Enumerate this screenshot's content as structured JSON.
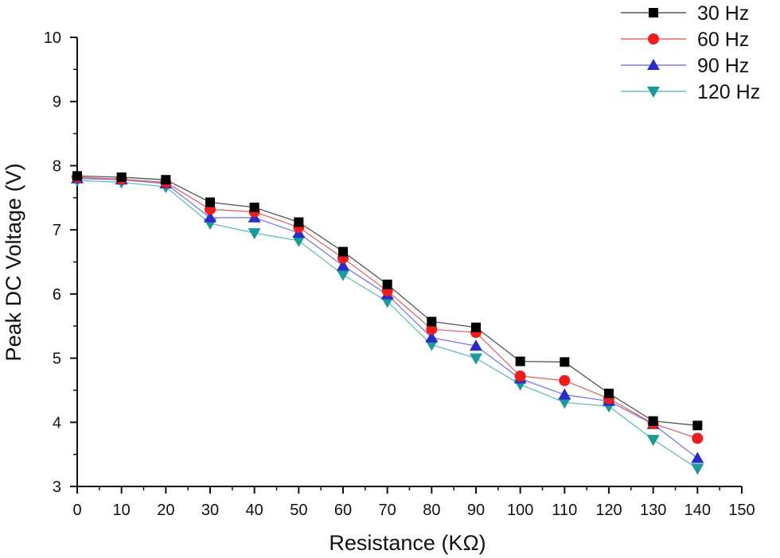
{
  "chart_data": {
    "type": "line",
    "title": "",
    "xlabel": "Resistance (KΩ)",
    "ylabel": "Peak DC Voltage (V)",
    "xlim": [
      0,
      150
    ],
    "ylim": [
      3,
      10
    ],
    "xticks": [
      0,
      10,
      20,
      30,
      40,
      50,
      60,
      70,
      80,
      90,
      100,
      110,
      120,
      130,
      140,
      150
    ],
    "yticks": [
      3,
      4,
      5,
      6,
      7,
      8,
      9,
      10
    ],
    "grid": false,
    "legend_position": "top-right",
    "x": [
      0,
      10,
      20,
      30,
      40,
      50,
      60,
      70,
      80,
      90,
      100,
      110,
      120,
      130,
      140
    ],
    "series": [
      {
        "name": "30 Hz",
        "color": "#000000",
        "line_color": "#555555",
        "marker": "square",
        "values": [
          7.84,
          7.82,
          7.78,
          7.43,
          7.35,
          7.12,
          6.66,
          6.15,
          5.57,
          5.48,
          4.95,
          4.94,
          4.45,
          4.02,
          3.95
        ]
      },
      {
        "name": "60 Hz",
        "color": "#ee1c1c",
        "line_color": "#e06666",
        "marker": "circle",
        "values": [
          7.82,
          7.79,
          7.74,
          7.32,
          7.28,
          7.04,
          6.56,
          6.05,
          5.45,
          5.4,
          4.72,
          4.65,
          4.37,
          3.98,
          3.75
        ]
      },
      {
        "name": "90 Hz",
        "color": "#2b2bc8",
        "line_color": "#7b7be0",
        "marker": "triangle-up",
        "values": [
          7.8,
          7.78,
          7.72,
          7.19,
          7.19,
          6.95,
          6.44,
          5.99,
          5.32,
          5.19,
          4.68,
          4.43,
          4.33,
          3.97,
          3.44
        ]
      },
      {
        "name": "120 Hz",
        "color": "#1a9a9a",
        "line_color": "#66bdbd",
        "marker": "triangle-down",
        "values": [
          7.77,
          7.74,
          7.67,
          7.1,
          6.95,
          6.83,
          6.3,
          5.88,
          5.21,
          5.0,
          4.59,
          4.31,
          4.25,
          3.73,
          3.28
        ]
      }
    ]
  }
}
